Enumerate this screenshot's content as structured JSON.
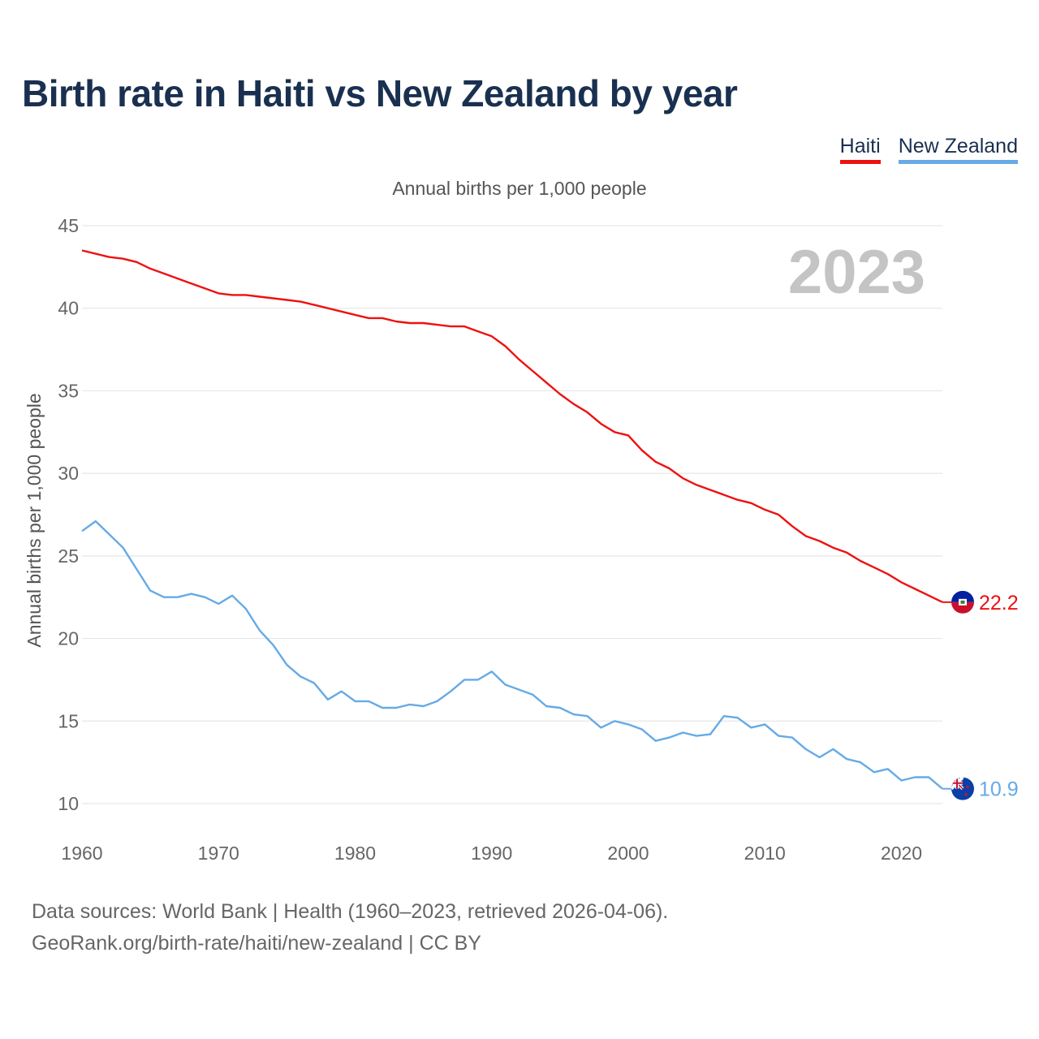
{
  "title": "Birth rate in Haiti vs New Zealand by year",
  "legend": [
    {
      "label": "Haiti",
      "color": "#ee1111"
    },
    {
      "label": "New Zealand",
      "color": "#66aae6"
    }
  ],
  "footer": {
    "line1": "Data sources: World Bank | Health (1960–2023, retrieved 2026-04-06).",
    "line2": "GeoRank.org/birth-rate/haiti/new-zealand | CC BY"
  },
  "chart_data": {
    "type": "line",
    "title": "Birth rate in Haiti vs New Zealand by year",
    "subtitle": "Annual births per 1,000 people",
    "xlabel": "",
    "ylabel": "Annual births per 1,000 people",
    "year_label": "2023",
    "xlim": [
      1960,
      2023
    ],
    "ylim": [
      10,
      45
    ],
    "x_ticks": [
      1960,
      1970,
      1980,
      1990,
      2000,
      2010,
      2020
    ],
    "y_ticks": [
      10,
      15,
      20,
      25,
      30,
      35,
      40,
      45
    ],
    "grid": true,
    "legend_position": "top-right",
    "x": [
      1960,
      1961,
      1962,
      1963,
      1964,
      1965,
      1966,
      1967,
      1968,
      1969,
      1970,
      1971,
      1972,
      1973,
      1974,
      1975,
      1976,
      1977,
      1978,
      1979,
      1980,
      1981,
      1982,
      1983,
      1984,
      1985,
      1986,
      1987,
      1988,
      1989,
      1990,
      1991,
      1992,
      1993,
      1994,
      1995,
      1996,
      1997,
      1998,
      1999,
      2000,
      2001,
      2002,
      2003,
      2004,
      2005,
      2006,
      2007,
      2008,
      2009,
      2010,
      2011,
      2012,
      2013,
      2014,
      2015,
      2016,
      2017,
      2018,
      2019,
      2020,
      2021,
      2022,
      2023
    ],
    "series": [
      {
        "name": "Haiti",
        "color": "#ee1111",
        "end_label": "22.2",
        "values": [
          43.5,
          43.3,
          43.1,
          43.0,
          42.8,
          42.4,
          42.1,
          41.8,
          41.5,
          41.2,
          40.9,
          40.8,
          40.8,
          40.7,
          40.6,
          40.5,
          40.4,
          40.2,
          40.0,
          39.8,
          39.6,
          39.4,
          39.4,
          39.2,
          39.1,
          39.1,
          39.0,
          38.9,
          38.9,
          38.6,
          38.3,
          37.7,
          36.9,
          36.2,
          35.5,
          34.8,
          34.2,
          33.7,
          33.0,
          32.5,
          32.3,
          31.4,
          30.7,
          30.3,
          29.7,
          29.3,
          29.0,
          28.7,
          28.4,
          28.2,
          27.8,
          27.5,
          26.8,
          26.2,
          25.9,
          25.5,
          25.2,
          24.7,
          24.3,
          23.9,
          23.4,
          23.0,
          22.6,
          22.2
        ]
      },
      {
        "name": "New Zealand",
        "color": "#66aae6",
        "end_label": "10.9",
        "values": [
          26.5,
          27.1,
          26.3,
          25.5,
          24.2,
          22.9,
          22.5,
          22.5,
          22.7,
          22.5,
          22.1,
          22.6,
          21.8,
          20.5,
          19.6,
          18.4,
          17.7,
          17.3,
          16.3,
          16.8,
          16.2,
          16.2,
          15.8,
          15.8,
          16.0,
          15.9,
          16.2,
          16.8,
          17.5,
          17.5,
          18.0,
          17.2,
          16.9,
          16.6,
          15.9,
          15.8,
          15.4,
          15.3,
          14.6,
          15.0,
          14.8,
          14.5,
          13.8,
          14.0,
          14.3,
          14.1,
          14.2,
          15.3,
          15.2,
          14.6,
          14.8,
          14.1,
          14.0,
          13.3,
          12.8,
          13.3,
          12.7,
          12.5,
          11.9,
          12.1,
          11.4,
          11.6,
          11.6,
          10.9
        ]
      }
    ]
  }
}
